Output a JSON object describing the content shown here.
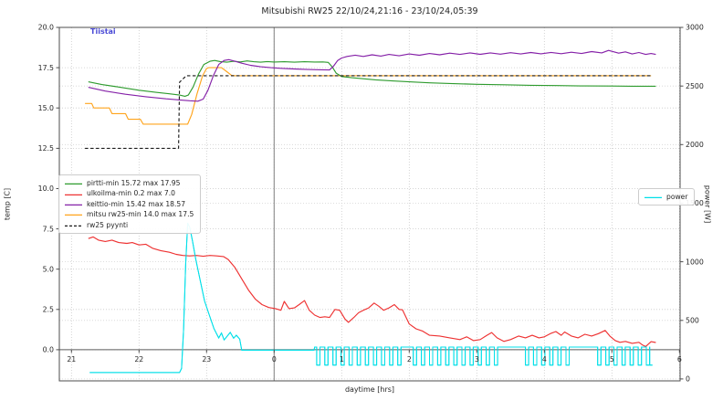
{
  "day_annotation": {
    "label": "Tiistai",
    "color": "#4a4ad6"
  },
  "chart_data": {
    "type": "line",
    "title": "Mitsubishi RW25 22/10/24,21:16 - 23/10/24,05:39",
    "xlabel": "daytime [hrs]",
    "ylabel_left": "temp [C]",
    "ylabel_right": "power [W]",
    "xlim": [
      20.82,
      30.01
    ],
    "ylim_left": [
      -1.93,
      20.0
    ],
    "ylim_right": [
      -16,
      3000
    ],
    "grid": true,
    "midnight_line_x": 24,
    "zero_temp_line": 0.0,
    "x_ticks": [
      {
        "v": 21,
        "label": "21"
      },
      {
        "v": 22,
        "label": "22"
      },
      {
        "v": 23,
        "label": "23"
      },
      {
        "v": 24,
        "label": "0"
      },
      {
        "v": 25,
        "label": "1"
      },
      {
        "v": 26,
        "label": "2"
      },
      {
        "v": 27,
        "label": "3"
      },
      {
        "v": 28,
        "label": "4"
      },
      {
        "v": 29,
        "label": "5"
      },
      {
        "v": 30,
        "label": "6"
      }
    ],
    "y_ticks_left": [
      {
        "v": 0.0,
        "label": "0.0"
      },
      {
        "v": 2.5,
        "label": "2.5"
      },
      {
        "v": 5.0,
        "label": "5.0"
      },
      {
        "v": 7.5,
        "label": "7.5"
      },
      {
        "v": 10.0,
        "label": "10.0"
      },
      {
        "v": 12.5,
        "label": "12.5"
      },
      {
        "v": 15.0,
        "label": "15.0"
      },
      {
        "v": 17.5,
        "label": "17.5"
      },
      {
        "v": 20.0,
        "label": "20.0"
      }
    ],
    "y_ticks_right": [
      {
        "v": 0,
        "label": "0"
      },
      {
        "v": 500,
        "label": "500"
      },
      {
        "v": 1000,
        "label": "1000"
      },
      {
        "v": 1500,
        "label": "1500"
      },
      {
        "v": 2000,
        "label": "2000"
      },
      {
        "v": 2500,
        "label": "2500"
      },
      {
        "v": 3000,
        "label": "3000"
      }
    ],
    "series": [
      {
        "id": "pirtti",
        "legend": "pirtti-min 15.72 max 17.95",
        "color": "#2e9b2e",
        "axis": "left",
        "style": "solid",
        "min": 15.72,
        "max": 17.95,
        "points": [
          [
            21.25,
            16.62
          ],
          [
            21.45,
            16.45
          ],
          [
            21.7,
            16.3
          ],
          [
            22.0,
            16.1
          ],
          [
            22.25,
            15.97
          ],
          [
            22.45,
            15.88
          ],
          [
            22.6,
            15.8
          ],
          [
            22.68,
            15.73
          ],
          [
            22.73,
            15.8
          ],
          [
            22.8,
            16.3
          ],
          [
            22.88,
            17.1
          ],
          [
            22.96,
            17.7
          ],
          [
            23.05,
            17.9
          ],
          [
            23.12,
            17.95
          ],
          [
            23.2,
            17.88
          ],
          [
            23.3,
            17.84
          ],
          [
            23.4,
            17.9
          ],
          [
            23.5,
            17.86
          ],
          [
            23.6,
            17.92
          ],
          [
            23.7,
            17.87
          ],
          [
            23.8,
            17.84
          ],
          [
            23.9,
            17.88
          ],
          [
            24.0,
            17.85
          ],
          [
            24.15,
            17.87
          ],
          [
            24.3,
            17.84
          ],
          [
            24.45,
            17.87
          ],
          [
            24.6,
            17.85
          ],
          [
            24.72,
            17.86
          ],
          [
            24.8,
            17.83
          ],
          [
            24.86,
            17.55
          ],
          [
            24.92,
            17.15
          ],
          [
            25.0,
            16.95
          ],
          [
            25.15,
            16.88
          ],
          [
            25.3,
            16.82
          ],
          [
            25.5,
            16.75
          ],
          [
            25.75,
            16.68
          ],
          [
            26.0,
            16.62
          ],
          [
            26.3,
            16.56
          ],
          [
            26.6,
            16.52
          ],
          [
            27.0,
            16.47
          ],
          [
            27.4,
            16.44
          ],
          [
            27.8,
            16.41
          ],
          [
            28.2,
            16.39
          ],
          [
            28.6,
            16.37
          ],
          [
            29.0,
            16.36
          ],
          [
            29.3,
            16.35
          ],
          [
            29.65,
            16.35
          ]
        ]
      },
      {
        "id": "ulkoilma",
        "legend": "ulkoilma-min 0.2 max 7.0",
        "color": "#ee3232",
        "axis": "left",
        "style": "solid",
        "min": 0.2,
        "max": 7.0,
        "points": [
          [
            21.25,
            6.9
          ],
          [
            21.32,
            7.0
          ],
          [
            21.4,
            6.8
          ],
          [
            21.5,
            6.72
          ],
          [
            21.6,
            6.8
          ],
          [
            21.7,
            6.65
          ],
          [
            21.82,
            6.6
          ],
          [
            21.9,
            6.65
          ],
          [
            22.0,
            6.5
          ],
          [
            22.1,
            6.55
          ],
          [
            22.2,
            6.3
          ],
          [
            22.32,
            6.15
          ],
          [
            22.45,
            6.05
          ],
          [
            22.55,
            5.92
          ],
          [
            22.65,
            5.85
          ],
          [
            22.75,
            5.82
          ],
          [
            22.85,
            5.85
          ],
          [
            22.95,
            5.8
          ],
          [
            23.05,
            5.85
          ],
          [
            23.15,
            5.82
          ],
          [
            23.25,
            5.78
          ],
          [
            23.32,
            5.6
          ],
          [
            23.42,
            5.1
          ],
          [
            23.52,
            4.4
          ],
          [
            23.62,
            3.7
          ],
          [
            23.72,
            3.15
          ],
          [
            23.82,
            2.8
          ],
          [
            23.92,
            2.62
          ],
          [
            24.02,
            2.55
          ],
          [
            24.1,
            2.45
          ],
          [
            24.15,
            3.0
          ],
          [
            24.22,
            2.55
          ],
          [
            24.3,
            2.6
          ],
          [
            24.37,
            2.8
          ],
          [
            24.45,
            3.05
          ],
          [
            24.52,
            2.45
          ],
          [
            24.6,
            2.15
          ],
          [
            24.68,
            2.0
          ],
          [
            24.75,
            2.05
          ],
          [
            24.82,
            2.0
          ],
          [
            24.9,
            2.5
          ],
          [
            24.97,
            2.45
          ],
          [
            25.05,
            1.9
          ],
          [
            25.1,
            1.7
          ],
          [
            25.18,
            2.0
          ],
          [
            25.25,
            2.3
          ],
          [
            25.32,
            2.45
          ],
          [
            25.4,
            2.6
          ],
          [
            25.48,
            2.9
          ],
          [
            25.55,
            2.7
          ],
          [
            25.62,
            2.45
          ],
          [
            25.7,
            2.6
          ],
          [
            25.78,
            2.8
          ],
          [
            25.85,
            2.5
          ],
          [
            25.9,
            2.48
          ],
          [
            26.0,
            1.6
          ],
          [
            26.1,
            1.3
          ],
          [
            26.2,
            1.15
          ],
          [
            26.3,
            0.9
          ],
          [
            26.45,
            0.85
          ],
          [
            26.6,
            0.74
          ],
          [
            26.75,
            0.63
          ],
          [
            26.85,
            0.8
          ],
          [
            26.95,
            0.57
          ],
          [
            27.05,
            0.63
          ],
          [
            27.15,
            0.9
          ],
          [
            27.22,
            1.07
          ],
          [
            27.3,
            0.74
          ],
          [
            27.4,
            0.52
          ],
          [
            27.5,
            0.63
          ],
          [
            27.62,
            0.85
          ],
          [
            27.72,
            0.74
          ],
          [
            27.82,
            0.9
          ],
          [
            27.92,
            0.74
          ],
          [
            28.0,
            0.8
          ],
          [
            28.1,
            1.02
          ],
          [
            28.17,
            1.13
          ],
          [
            28.25,
            0.9
          ],
          [
            28.3,
            1.1
          ],
          [
            28.4,
            0.85
          ],
          [
            28.5,
            0.74
          ],
          [
            28.6,
            0.96
          ],
          [
            28.7,
            0.85
          ],
          [
            28.8,
            1.0
          ],
          [
            28.9,
            1.2
          ],
          [
            28.97,
            0.85
          ],
          [
            29.05,
            0.57
          ],
          [
            29.12,
            0.46
          ],
          [
            29.2,
            0.52
          ],
          [
            29.3,
            0.4
          ],
          [
            29.4,
            0.46
          ],
          [
            29.45,
            0.3
          ],
          [
            29.5,
            0.2
          ],
          [
            29.58,
            0.5
          ],
          [
            29.65,
            0.45
          ]
        ]
      },
      {
        "id": "keittio",
        "legend": "keittio-min 15.42 max 18.57",
        "color": "#8521a8",
        "axis": "left",
        "style": "solid",
        "min": 15.42,
        "max": 18.57,
        "points": [
          [
            21.25,
            16.28
          ],
          [
            21.5,
            16.05
          ],
          [
            21.8,
            15.85
          ],
          [
            22.1,
            15.7
          ],
          [
            22.4,
            15.57
          ],
          [
            22.6,
            15.5
          ],
          [
            22.75,
            15.45
          ],
          [
            22.87,
            15.42
          ],
          [
            22.95,
            15.55
          ],
          [
            23.02,
            16.1
          ],
          [
            23.1,
            17.0
          ],
          [
            23.18,
            17.7
          ],
          [
            23.26,
            17.95
          ],
          [
            23.33,
            18.0
          ],
          [
            23.42,
            17.9
          ],
          [
            23.52,
            17.78
          ],
          [
            23.65,
            17.65
          ],
          [
            23.8,
            17.56
          ],
          [
            23.95,
            17.5
          ],
          [
            24.1,
            17.46
          ],
          [
            24.3,
            17.42
          ],
          [
            24.5,
            17.39
          ],
          [
            24.7,
            17.37
          ],
          [
            24.82,
            17.36
          ],
          [
            24.88,
            17.6
          ],
          [
            24.94,
            17.95
          ],
          [
            25.0,
            18.1
          ],
          [
            25.08,
            18.2
          ],
          [
            25.2,
            18.28
          ],
          [
            25.32,
            18.2
          ],
          [
            25.45,
            18.3
          ],
          [
            25.58,
            18.22
          ],
          [
            25.7,
            18.32
          ],
          [
            25.85,
            18.24
          ],
          [
            26.0,
            18.35
          ],
          [
            26.15,
            18.27
          ],
          [
            26.3,
            18.38
          ],
          [
            26.45,
            18.3
          ],
          [
            26.6,
            18.4
          ],
          [
            26.75,
            18.32
          ],
          [
            26.9,
            18.42
          ],
          [
            27.05,
            18.33
          ],
          [
            27.2,
            18.42
          ],
          [
            27.35,
            18.34
          ],
          [
            27.5,
            18.43
          ],
          [
            27.65,
            18.35
          ],
          [
            27.8,
            18.44
          ],
          [
            27.95,
            18.36
          ],
          [
            28.1,
            18.45
          ],
          [
            28.25,
            18.37
          ],
          [
            28.4,
            18.46
          ],
          [
            28.55,
            18.38
          ],
          [
            28.7,
            18.5
          ],
          [
            28.85,
            18.42
          ],
          [
            28.95,
            18.57
          ],
          [
            29.1,
            18.4
          ],
          [
            29.2,
            18.48
          ],
          [
            29.3,
            18.35
          ],
          [
            29.4,
            18.44
          ],
          [
            29.5,
            18.32
          ],
          [
            29.58,
            18.38
          ],
          [
            29.65,
            18.32
          ]
        ]
      },
      {
        "id": "mitsu-rw25",
        "legend": "mitsu rw25-min 14.0 max 17.5",
        "color": "#ffa41c",
        "axis": "left",
        "style": "solid",
        "min": 14.0,
        "max": 17.5,
        "points": [
          [
            21.2,
            15.28
          ],
          [
            21.3,
            15.28
          ],
          [
            21.33,
            15.0
          ],
          [
            21.56,
            15.0
          ],
          [
            21.6,
            14.65
          ],
          [
            21.8,
            14.65
          ],
          [
            21.84,
            14.3
          ],
          [
            22.02,
            14.3
          ],
          [
            22.06,
            14.0
          ],
          [
            22.72,
            14.0
          ],
          [
            22.78,
            14.6
          ],
          [
            22.86,
            15.9
          ],
          [
            22.94,
            17.0
          ],
          [
            23.0,
            17.45
          ],
          [
            23.03,
            17.5
          ],
          [
            23.22,
            17.5
          ],
          [
            23.3,
            17.25
          ],
          [
            23.37,
            17.02
          ],
          [
            23.42,
            17.0
          ],
          [
            29.58,
            17.0
          ]
        ]
      },
      {
        "id": "rw25-pyynti",
        "legend": "rw25 pyynti",
        "color": "#1a1a1a",
        "axis": "left",
        "style": "dashed",
        "points": [
          [
            21.2,
            12.5
          ],
          [
            22.585,
            12.5
          ],
          [
            22.6,
            16.6
          ],
          [
            22.7,
            17.0
          ],
          [
            29.6,
            17.0
          ]
        ]
      },
      {
        "id": "power",
        "legend": "power",
        "color": "#00dfe8",
        "axis": "right",
        "style": "solid",
        "points": [
          [
            21.27,
            55
          ],
          [
            22.6,
            55
          ],
          [
            22.63,
            90
          ],
          [
            22.66,
            420
          ],
          [
            22.69,
            980
          ],
          [
            22.72,
            1330
          ],
          [
            22.75,
            1295
          ],
          [
            22.79,
            1180
          ],
          [
            22.84,
            1020
          ],
          [
            22.91,
            830
          ],
          [
            22.97,
            665
          ],
          [
            23.04,
            545
          ],
          [
            23.11,
            430
          ],
          [
            23.18,
            350
          ],
          [
            23.22,
            392
          ],
          [
            23.26,
            333
          ],
          [
            23.31,
            368
          ],
          [
            23.35,
            398
          ],
          [
            23.4,
            348
          ],
          [
            23.44,
            374
          ],
          [
            23.49,
            340
          ],
          [
            23.52,
            246
          ],
          [
            24.59,
            246
          ]
        ],
        "pulse": {
          "top": 272,
          "dip": 118,
          "period": 0.12,
          "dip_len": 0.048,
          "windows": [
            [
              24.6,
              25.97
            ],
            [
              26.03,
              27.4
            ],
            [
              27.69,
              28.45
            ],
            [
              28.76,
              29.56
            ]
          ],
          "tail": [
            [
              29.56,
              118
            ],
            [
              29.6,
              118
            ]
          ]
        }
      }
    ]
  }
}
